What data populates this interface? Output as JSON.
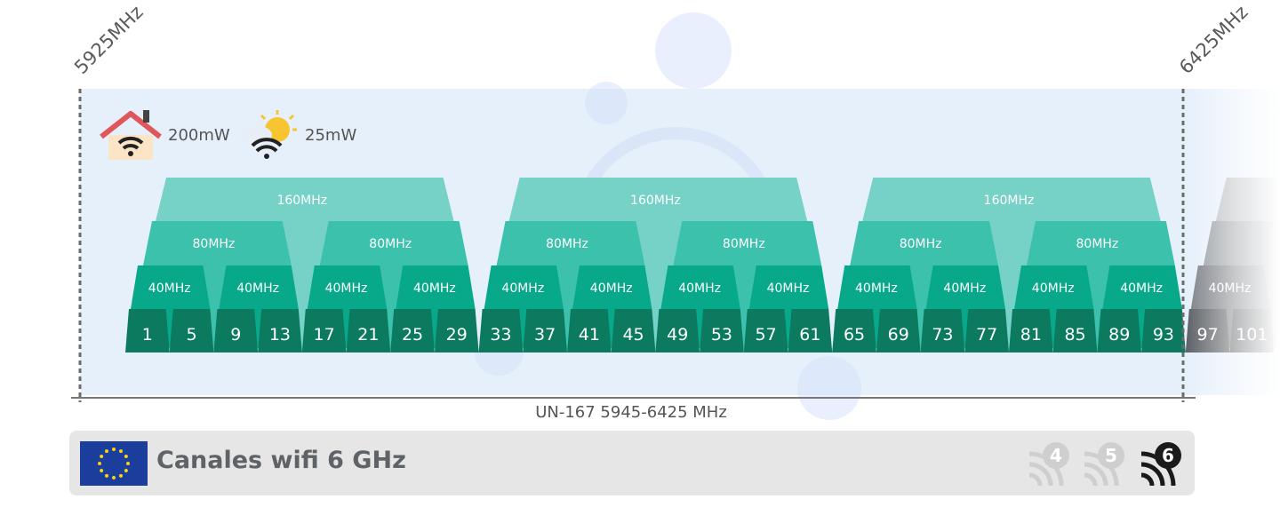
{
  "band": {
    "start_label": "5925MHz",
    "end_label": "6425MHz",
    "caption": "UN-167 5945-6425 MHz"
  },
  "power": {
    "indoor": {
      "value": "200mW",
      "icon": "house-wifi-icon"
    },
    "outdoor": {
      "value": "25mW",
      "icon": "sun-cloud-wifi-icon"
    }
  },
  "labels": {
    "w40": "40MHz",
    "w80": "80MHz",
    "w160": "160MHz"
  },
  "channels": [
    "1",
    "5",
    "9",
    "13",
    "17",
    "21",
    "25",
    "29",
    "33",
    "37",
    "41",
    "45",
    "49",
    "53",
    "57",
    "61",
    "65",
    "69",
    "73",
    "77",
    "81",
    "85",
    "89",
    "93",
    "97",
    "101"
  ],
  "footer": {
    "title": "Canales wifi 6 GHz",
    "badges": [
      {
        "text": "4",
        "state": "inactive"
      },
      {
        "text": "5",
        "state": "inactive"
      },
      {
        "text": "6",
        "state": "active"
      }
    ]
  },
  "colors": {
    "w20": "#0b7a5f",
    "w40": "#08a98a",
    "w80": "#3cc1ac",
    "w160": "#76d2c6",
    "background": "#e6f0fb",
    "faded": "#8a8d90"
  }
}
